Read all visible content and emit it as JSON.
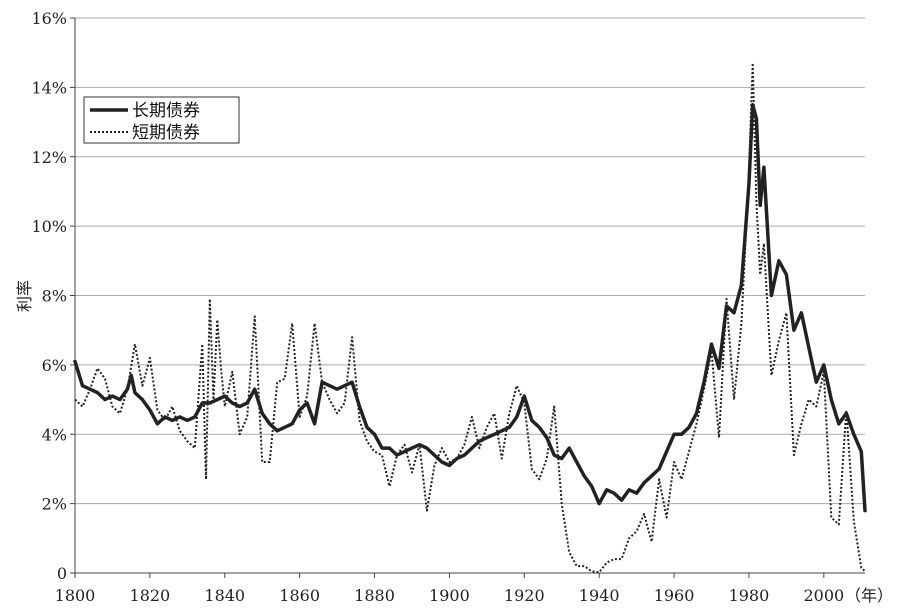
{
  "chart_data": {
    "type": "line",
    "title": "",
    "xlabel": "（年）",
    "ylabel": "利率",
    "xlim": [
      1800,
      2011
    ],
    "ylim": [
      0,
      16
    ],
    "grid": true,
    "legend_position": "top-left",
    "x_ticks": [
      "1800",
      "1820",
      "1840",
      "1860",
      "1880",
      "1900",
      "1920",
      "1940",
      "1960",
      "1980",
      "2000"
    ],
    "x_tick_values": [
      1800,
      1820,
      1840,
      1860,
      1880,
      1900,
      1920,
      1940,
      1960,
      1980,
      2000
    ],
    "y_ticks": [
      "0",
      "2%",
      "4%",
      "6%",
      "8%",
      "10%",
      "12%",
      "14%",
      "16%"
    ],
    "y_tick_values": [
      0,
      2,
      4,
      6,
      8,
      10,
      12,
      14,
      16
    ],
    "colors": {
      "series_line": "#222222",
      "grid": "#aaaaaa",
      "axis": "#444444"
    },
    "series": [
      {
        "name": "长期债券",
        "style": "solid",
        "x": [
          1800,
          1802,
          1804,
          1806,
          1808,
          1810,
          1812,
          1814,
          1815,
          1816,
          1818,
          1820,
          1822,
          1824,
          1826,
          1828,
          1830,
          1832,
          1834,
          1836,
          1838,
          1840,
          1842,
          1844,
          1846,
          1848,
          1850,
          1852,
          1854,
          1856,
          1858,
          1860,
          1862,
          1864,
          1866,
          1868,
          1870,
          1872,
          1874,
          1876,
          1878,
          1880,
          1882,
          1884,
          1886,
          1888,
          1890,
          1892,
          1894,
          1896,
          1898,
          1900,
          1902,
          1904,
          1906,
          1908,
          1910,
          1912,
          1914,
          1916,
          1918,
          1920,
          1922,
          1924,
          1926,
          1928,
          1930,
          1932,
          1934,
          1936,
          1938,
          1940,
          1942,
          1944,
          1946,
          1948,
          1950,
          1952,
          1954,
          1956,
          1958,
          1960,
          1962,
          1964,
          1966,
          1968,
          1970,
          1972,
          1974,
          1976,
          1978,
          1980,
          1981,
          1982,
          1983,
          1984,
          1986,
          1988,
          1990,
          1992,
          1994,
          1996,
          1998,
          2000,
          2002,
          2004,
          2006,
          2008,
          2010,
          2011
        ],
        "values": [
          6.1,
          5.4,
          5.3,
          5.2,
          5.0,
          5.1,
          5.0,
          5.3,
          5.7,
          5.2,
          5.0,
          4.7,
          4.3,
          4.5,
          4.4,
          4.5,
          4.4,
          4.5,
          4.9,
          4.9,
          5.0,
          5.1,
          4.9,
          4.8,
          4.9,
          5.3,
          4.6,
          4.3,
          4.1,
          4.2,
          4.3,
          4.7,
          4.9,
          4.3,
          5.5,
          5.4,
          5.3,
          5.4,
          5.5,
          4.8,
          4.2,
          4.0,
          3.6,
          3.6,
          3.4,
          3.5,
          3.6,
          3.7,
          3.6,
          3.4,
          3.2,
          3.1,
          3.3,
          3.4,
          3.6,
          3.8,
          3.9,
          4.0,
          4.1,
          4.2,
          4.5,
          5.1,
          4.4,
          4.2,
          3.9,
          3.4,
          3.3,
          3.6,
          3.2,
          2.8,
          2.5,
          2.0,
          2.4,
          2.3,
          2.1,
          2.4,
          2.3,
          2.6,
          2.8,
          3.0,
          3.5,
          4.0,
          4.0,
          4.2,
          4.6,
          5.5,
          6.6,
          5.9,
          7.7,
          7.5,
          8.3,
          11.2,
          13.5,
          13.1,
          10.6,
          11.7,
          8.0,
          9.0,
          8.6,
          7.0,
          7.5,
          6.5,
          5.5,
          6.0,
          5.0,
          4.3,
          4.6,
          4.0,
          3.5,
          1.8
        ]
      },
      {
        "name": "短期债券",
        "style": "dotted",
        "x": [
          1800,
          1802,
          1804,
          1806,
          1808,
          1810,
          1812,
          1814,
          1816,
          1818,
          1820,
          1822,
          1824,
          1826,
          1828,
          1830,
          1832,
          1834,
          1835,
          1836,
          1837,
          1838,
          1839,
          1840,
          1842,
          1844,
          1846,
          1848,
          1850,
          1852,
          1854,
          1856,
          1858,
          1860,
          1862,
          1864,
          1866,
          1868,
          1870,
          1872,
          1874,
          1876,
          1878,
          1880,
          1882,
          1884,
          1886,
          1888,
          1890,
          1892,
          1894,
          1896,
          1898,
          1900,
          1902,
          1904,
          1906,
          1908,
          1910,
          1912,
          1914,
          1916,
          1918,
          1920,
          1922,
          1924,
          1926,
          1928,
          1930,
          1932,
          1934,
          1936,
          1938,
          1940,
          1942,
          1944,
          1946,
          1948,
          1950,
          1952,
          1954,
          1956,
          1958,
          1960,
          1962,
          1964,
          1966,
          1968,
          1970,
          1972,
          1974,
          1976,
          1978,
          1980,
          1981,
          1982,
          1983,
          1984,
          1986,
          1988,
          1990,
          1992,
          1994,
          1996,
          1998,
          2000,
          2002,
          2004,
          2006,
          2008,
          2010,
          2011
        ],
        "values": [
          5.0,
          4.8,
          5.3,
          5.9,
          5.6,
          4.8,
          4.6,
          5.3,
          6.6,
          5.4,
          6.2,
          4.7,
          4.4,
          4.8,
          4.1,
          3.8,
          3.6,
          6.6,
          2.7,
          7.9,
          5.0,
          7.3,
          5.9,
          4.8,
          5.8,
          4.0,
          4.5,
          7.4,
          3.2,
          3.2,
          5.5,
          5.6,
          7.2,
          4.5,
          5.1,
          7.2,
          5.5,
          5.0,
          4.6,
          4.9,
          6.8,
          4.4,
          3.8,
          3.5,
          3.4,
          2.5,
          3.4,
          3.7,
          2.9,
          3.7,
          1.8,
          3.1,
          3.6,
          3.2,
          3.3,
          3.7,
          4.5,
          3.6,
          4.2,
          4.6,
          3.3,
          4.6,
          5.4,
          4.9,
          3.0,
          2.7,
          3.3,
          4.8,
          2.0,
          0.6,
          0.2,
          0.2,
          0.05,
          0.02,
          0.3,
          0.4,
          0.4,
          1.0,
          1.2,
          1.7,
          0.9,
          2.7,
          1.6,
          3.2,
          2.7,
          3.5,
          4.3,
          5.3,
          6.4,
          3.9,
          7.9,
          5.0,
          7.2,
          11.5,
          14.7,
          10.7,
          8.6,
          9.5,
          5.7,
          6.7,
          7.5,
          3.4,
          4.3,
          5.0,
          4.8,
          5.8,
          1.6,
          1.4,
          4.7,
          1.5,
          0.15,
          0.05
        ]
      }
    ]
  }
}
